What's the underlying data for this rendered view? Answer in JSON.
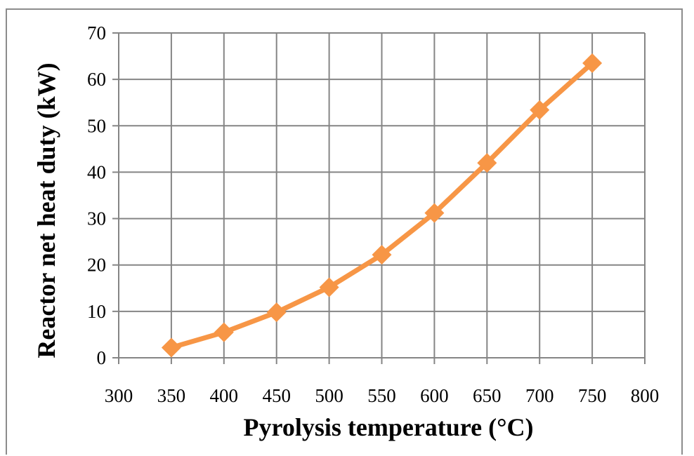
{
  "colors": {
    "series": "#f79646",
    "grid": "#858585",
    "axis_text": "#000000"
  },
  "chart_data": {
    "type": "line",
    "title": "",
    "xlabel": "Pyrolysis temperature (°C)",
    "ylabel": "Reactor net heat duty (kW)",
    "xlim": [
      300,
      800
    ],
    "ylim": [
      0,
      70
    ],
    "xticks": [
      300,
      350,
      400,
      450,
      500,
      550,
      600,
      650,
      700,
      750,
      800
    ],
    "yticks": [
      0,
      10,
      20,
      30,
      40,
      50,
      60,
      70
    ],
    "grid": true,
    "marker": "diamond",
    "series": [
      {
        "x": [
          350,
          400,
          450,
          500,
          550,
          600,
          650,
          700,
          750
        ],
        "values": [
          2.2,
          5.5,
          9.8,
          15.2,
          22.2,
          31.2,
          42.0,
          53.4,
          63.5
        ]
      }
    ]
  }
}
